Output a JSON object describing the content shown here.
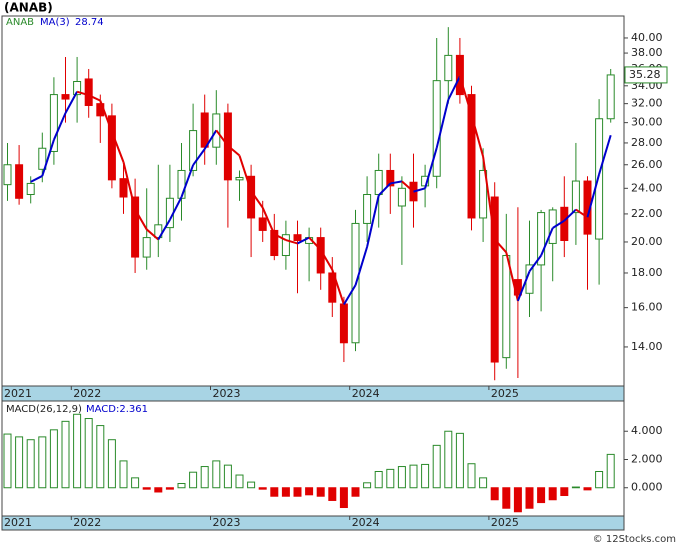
{
  "chart_data": [
    {
      "type": "candlestick",
      "title": "(ANAB)",
      "log_scale": true,
      "categories": [
        "2021",
        null,
        null,
        null,
        null,
        null,
        "2022",
        null,
        null,
        null,
        null,
        null,
        null,
        null,
        null,
        null,
        null,
        null,
        "2023",
        null,
        null,
        null,
        null,
        null,
        null,
        null,
        null,
        null,
        null,
        null,
        "2024",
        null,
        null,
        null,
        null,
        null,
        null,
        null,
        null,
        null,
        null,
        null,
        "2025",
        null,
        null,
        null,
        null,
        null,
        null,
        null,
        null,
        null,
        null
      ],
      "series": [
        {
          "name": "ANAB",
          "color": "#2a8a2a",
          "down_color": "#e00000",
          "open": [
            24.3,
            26,
            23.5,
            25.6,
            27.2,
            33,
            33,
            34.8,
            32,
            30.7,
            24.8,
            23.3,
            19,
            20.3,
            21,
            23.2,
            25.5,
            31,
            27.6,
            31,
            24.7,
            25,
            21.7,
            20.8,
            19.1,
            20.5,
            19.9,
            20.3,
            18,
            16.2,
            14.2,
            21.3,
            23.5,
            25.5,
            22.6,
            24.5,
            24.2,
            25,
            34.6,
            37.7,
            33,
            21.7,
            23.3,
            13.5,
            17.6,
            16.8,
            18.5,
            19.9,
            22.5,
            22.1,
            24.6,
            20.2,
            30.4
          ],
          "high": [
            28,
            27.8,
            25,
            29,
            35,
            37.5,
            37.5,
            36,
            33,
            32,
            26,
            24.8,
            24,
            26,
            26,
            28,
            32,
            33,
            33.5,
            32,
            25.5,
            26,
            23,
            22,
            21.5,
            21.5,
            21,
            21,
            19,
            16.6,
            22.3,
            25,
            27,
            27,
            25,
            27,
            26,
            40,
            41.5,
            40,
            34,
            27.5,
            24.5,
            22,
            22.5,
            21.5,
            22.3,
            22.5,
            25,
            28,
            25,
            32.5,
            36
          ],
          "low": [
            23,
            22.7,
            22.8,
            24.5,
            26,
            30,
            30,
            30.5,
            28,
            24,
            22,
            18,
            18.2,
            19,
            20,
            21.5,
            25,
            26,
            26,
            21,
            23,
            19,
            20,
            18.8,
            18.2,
            16.8,
            17.5,
            17,
            15.5,
            13.3,
            13.8,
            20,
            21,
            22,
            18.5,
            21,
            22.5,
            24,
            32,
            32,
            20.8,
            20,
            12.5,
            13,
            12.6,
            15.5,
            15.8,
            17.5,
            19,
            19.8,
            17,
            17.3,
            30
          ],
          "close": [
            26,
            23.2,
            24.4,
            27.5,
            33,
            32.5,
            34.5,
            31.8,
            30.7,
            24.7,
            23.3,
            19,
            20.3,
            21.2,
            23.2,
            25.5,
            29.2,
            27.6,
            30.9,
            24.7,
            24.9,
            21.7,
            20.8,
            19.1,
            20.5,
            20.1,
            20.3,
            18,
            16.3,
            14.2,
            21.3,
            23.5,
            25.5,
            24.2,
            24,
            23,
            25,
            34.6,
            37.7,
            33,
            21.7,
            25.5,
            13.3,
            19.1,
            16.7,
            18.5,
            22.1,
            22.3,
            20.1,
            24.6,
            20.54,
            30.4,
            35.28
          ]
        },
        {
          "name": "MA(3)",
          "color": "#0000cc",
          "down_color": "#e00000",
          "values": [
            null,
            null,
            24.53,
            25.03,
            28.3,
            31,
            33.33,
            32.93,
            32.33,
            29.07,
            26.23,
            22.33,
            20.87,
            20.17,
            21.57,
            23.3,
            25.97,
            27.43,
            29.23,
            27.73,
            26.83,
            23.77,
            22.47,
            20.53,
            20.13,
            19.9,
            20.3,
            19.47,
            18.2,
            16.17,
            17.27,
            19.67,
            23.43,
            24.4,
            24.57,
            23.73,
            24,
            27.53,
            32.43,
            35.1,
            30.8,
            26.73,
            20.17,
            19.3,
            16.37,
            18.1,
            19.1,
            20.97,
            21.5,
            22.33,
            21.75,
            25.18,
            28.74
          ]
        }
      ],
      "ylim": [
        12.26,
        43.1
      ],
      "yticks": [
        {
          "value": 14,
          "label": "14.00"
        },
        {
          "value": 16,
          "label": "16.00"
        },
        {
          "value": 18,
          "label": "18.00"
        },
        {
          "value": 20,
          "label": "20.00"
        },
        {
          "value": 22,
          "label": "22.00"
        },
        {
          "value": 24,
          "label": "24.00"
        },
        {
          "value": 26,
          "label": "26.00"
        },
        {
          "value": 28,
          "label": "28.00"
        },
        {
          "value": 30,
          "label": "30.00"
        },
        {
          "value": 32,
          "label": "32.00"
        },
        {
          "value": 34,
          "label": "34.00"
        },
        {
          "value": 36,
          "label": "36.00"
        },
        {
          "value": 38,
          "label": "38.00"
        },
        {
          "value": 40,
          "label": "40.00"
        }
      ]
    },
    {
      "type": "bar",
      "title": "MACD(26,12,9)",
      "series": [
        {
          "name": "MACD:2.361",
          "color": "#2a8a2a",
          "down_color": "#e00000",
          "legend_color": "#0000cc",
          "values": [
            3.8,
            3.6,
            3.4,
            3.6,
            4.1,
            4.7,
            5.2,
            4.9,
            4.4,
            3.4,
            1.9,
            0.7,
            -0.1,
            -0.3,
            -0.1,
            0.3,
            1.1,
            1.5,
            1.9,
            1.6,
            0.9,
            0.4,
            -0.1,
            -0.6,
            -0.6,
            -0.6,
            -0.5,
            -0.6,
            -0.9,
            -1.4,
            -0.6,
            0.35,
            1.15,
            1.3,
            1.5,
            1.6,
            1.65,
            3.0,
            4.0,
            3.85,
            1.7,
            0.7,
            -0.85,
            -1.45,
            -1.7,
            -1.45,
            -1.05,
            -0.85,
            -0.55,
            0.05,
            -0.15,
            1.15,
            2.361
          ]
        }
      ],
      "ylim": [
        -2.0,
        6.14
      ],
      "yticks": [
        {
          "value": 0,
          "label": "0.000"
        },
        {
          "value": 2,
          "label": "2.000"
        },
        {
          "value": 4,
          "label": "4.000"
        }
      ]
    }
  ],
  "footer": "© 12Stocks.com"
}
